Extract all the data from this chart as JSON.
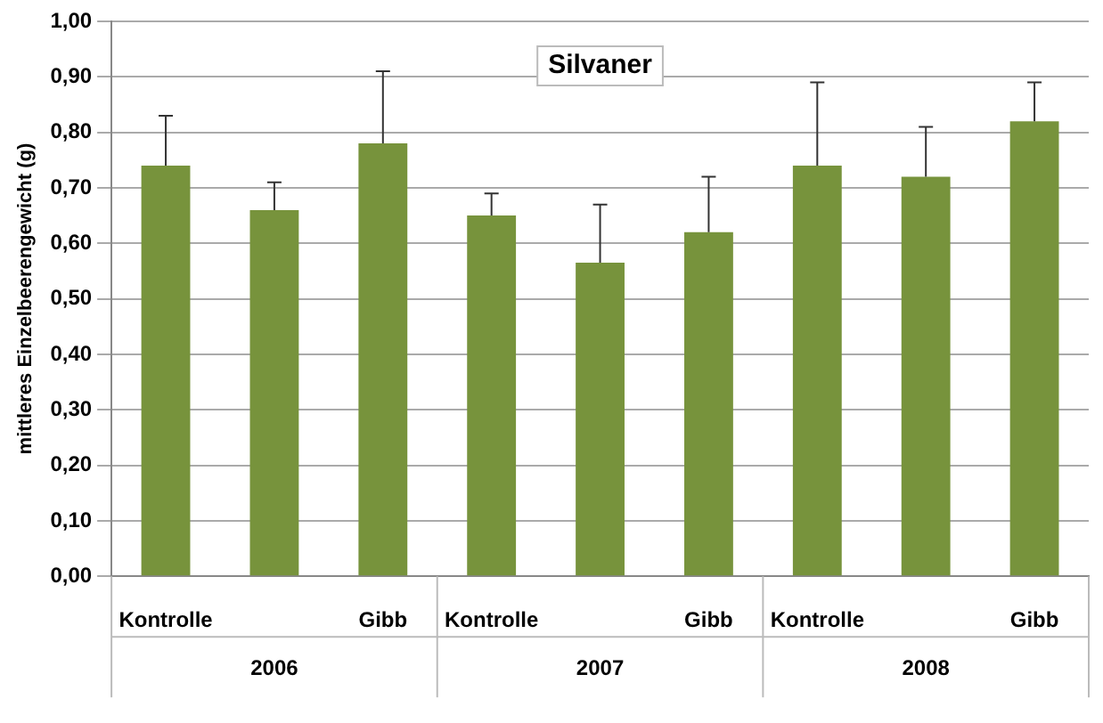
{
  "chart_data": {
    "type": "bar",
    "title": "Silvaner",
    "ylabel": "mittleres Einzelbeerengewicht (g)",
    "categories": [
      "Kontrolle",
      null,
      "Gibb",
      "Kontrolle",
      null,
      "Gibb",
      "Kontrolle",
      null,
      "Gibb"
    ],
    "values": [
      0.74,
      0.66,
      0.78,
      0.65,
      0.565,
      0.62,
      0.74,
      0.72,
      0.82
    ],
    "errors": [
      [
        0.74,
        0.83
      ],
      [
        0.66,
        0.71
      ],
      [
        0.78,
        0.91
      ],
      [
        0.65,
        0.69
      ],
      [
        0.565,
        0.67
      ],
      [
        0.62,
        0.72
      ],
      [
        0.74,
        0.89
      ],
      [
        0.72,
        0.81
      ],
      [
        0.82,
        0.89
      ]
    ],
    "color": "#77933c",
    "ylim": [
      0,
      1
    ],
    "yticks": [
      {
        "value": 0,
        "label": "0,00"
      },
      {
        "value": 0.1,
        "label": "0,10"
      },
      {
        "value": 0.2,
        "label": "0,20"
      },
      {
        "value": 0.3,
        "label": "0,30"
      },
      {
        "value": 0.4,
        "label": "0,40"
      },
      {
        "value": 0.5,
        "label": "0,50"
      },
      {
        "value": 0.6,
        "label": "0,60"
      },
      {
        "value": 0.7,
        "label": "0,70"
      },
      {
        "value": 0.8,
        "label": "0,80"
      },
      {
        "value": 0.9,
        "label": "0,90"
      },
      {
        "value": 1,
        "label": "1,00"
      }
    ],
    "annotations": [
      "2006",
      "2007",
      "2008"
    ],
    "grid": "y",
    "legend": false
  }
}
